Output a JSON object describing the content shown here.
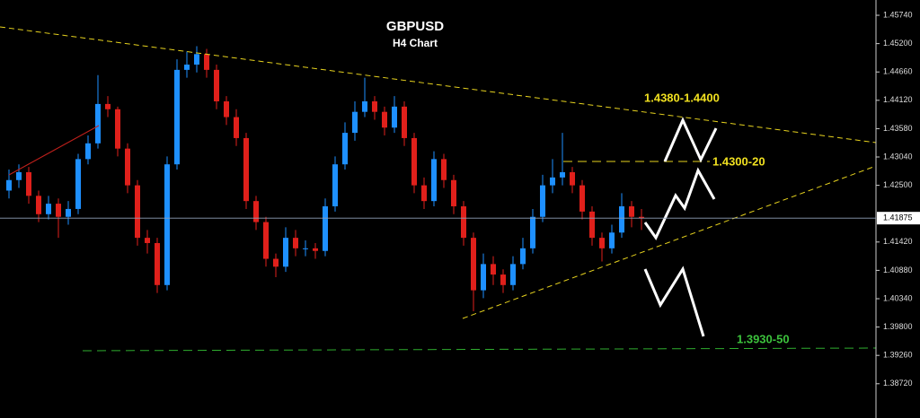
{
  "chart_data": {
    "type": "candlestick",
    "title": "GBPUSD",
    "subtitle": "H4 Chart",
    "annotations": [
      "1.4380-1.4400",
      "1.4300-20",
      "1.3930-50"
    ],
    "up_color": "#1e90ff",
    "down_color": "#e0201b",
    "ylim": [
      1.38067,
      1.46031
    ],
    "yticks": [
      {
        "value": 1.4574,
        "label": "1.45740"
      },
      {
        "value": 1.452,
        "label": "1.45200"
      },
      {
        "value": 1.4466,
        "label": "1.44660"
      },
      {
        "value": 1.4412,
        "label": "1.44120"
      },
      {
        "value": 1.4358,
        "label": "1.43580"
      },
      {
        "value": 1.4304,
        "label": "1.43040"
      },
      {
        "value": 1.425,
        "label": "1.42500"
      },
      {
        "value": 1.4142,
        "label": "1.41420"
      },
      {
        "value": 1.4088,
        "label": "1.40880"
      },
      {
        "value": 1.4034,
        "label": "1.40340"
      },
      {
        "value": 1.398,
        "label": "1.39800"
      },
      {
        "value": 1.3926,
        "label": "1.39260"
      },
      {
        "value": 1.3872,
        "label": "1.38720"
      }
    ],
    "last_price": 1.41875,
    "open": [
      1.424,
      1.426,
      1.4275,
      1.423,
      1.4195,
      1.4215,
      1.419,
      1.4205,
      1.43,
      1.433,
      1.4405,
      1.4395,
      1.432,
      1.425,
      1.415,
      1.414,
      1.406,
      1.429,
      1.447,
      1.448,
      1.45,
      1.447,
      1.441,
      1.438,
      1.434,
      1.422,
      1.418,
      1.411,
      1.4095,
      1.415,
      1.413,
      1.413,
      1.4125,
      1.421,
      1.429,
      1.435,
      1.439,
      1.441,
      1.439,
      1.436,
      1.44,
      1.434,
      1.425,
      1.422,
      1.43,
      1.426,
      1.421,
      1.415,
      1.405,
      1.41,
      1.408,
      1.406,
      1.41,
      1.413,
      1.419,
      1.425,
      1.4265,
      1.4275,
      1.425,
      1.42,
      1.415,
      1.413,
      1.416,
      1.421,
      1.419
    ],
    "high": [
      1.428,
      1.429,
      1.4285,
      1.424,
      1.423,
      1.4225,
      1.422,
      1.431,
      1.4345,
      1.446,
      1.442,
      1.44,
      1.433,
      1.426,
      1.4165,
      1.415,
      1.4305,
      1.449,
      1.4505,
      1.4515,
      1.451,
      1.448,
      1.442,
      1.4395,
      1.435,
      1.423,
      1.419,
      1.412,
      1.417,
      1.4165,
      1.4145,
      1.414,
      1.4225,
      1.4305,
      1.437,
      1.441,
      1.4455,
      1.442,
      1.44,
      1.442,
      1.441,
      1.435,
      1.4265,
      1.4315,
      1.431,
      1.427,
      1.422,
      1.416,
      1.412,
      1.4115,
      1.409,
      1.4115,
      1.415,
      1.4205,
      1.427,
      1.43,
      1.435,
      1.4285,
      1.426,
      1.421,
      1.416,
      1.4175,
      1.4235,
      1.422,
      1.4205
    ],
    "low": [
      1.4225,
      1.4245,
      1.4215,
      1.418,
      1.4185,
      1.415,
      1.4175,
      1.4195,
      1.429,
      1.432,
      1.438,
      1.4305,
      1.4235,
      1.4135,
      1.412,
      1.4045,
      1.405,
      1.428,
      1.4455,
      1.4465,
      1.4455,
      1.4395,
      1.4365,
      1.4325,
      1.4205,
      1.4165,
      1.4095,
      1.4075,
      1.4085,
      1.4115,
      1.4115,
      1.411,
      1.4115,
      1.42,
      1.428,
      1.4335,
      1.438,
      1.4375,
      1.4345,
      1.435,
      1.4325,
      1.4235,
      1.4205,
      1.421,
      1.4245,
      1.4195,
      1.4135,
      1.401,
      1.4035,
      1.406,
      1.4045,
      1.405,
      1.409,
      1.412,
      1.418,
      1.4235,
      1.425,
      1.4235,
      1.4185,
      1.4135,
      1.4105,
      1.412,
      1.415,
      1.417,
      1.4165
    ],
    "close": [
      1.426,
      1.4275,
      1.423,
      1.4195,
      1.4215,
      1.419,
      1.4205,
      1.43,
      1.433,
      1.4405,
      1.4395,
      1.432,
      1.425,
      1.415,
      1.414,
      1.406,
      1.429,
      1.447,
      1.448,
      1.45,
      1.447,
      1.441,
      1.438,
      1.434,
      1.422,
      1.418,
      1.411,
      1.4095,
      1.415,
      1.413,
      1.413,
      1.4125,
      1.421,
      1.429,
      1.435,
      1.439,
      1.441,
      1.439,
      1.436,
      1.44,
      1.434,
      1.425,
      1.422,
      1.43,
      1.426,
      1.421,
      1.415,
      1.405,
      1.41,
      1.408,
      1.406,
      1.41,
      1.413,
      1.419,
      1.425,
      1.4265,
      1.4275,
      1.425,
      1.42,
      1.415,
      1.413,
      1.416,
      1.421,
      1.419,
      1.41875
    ]
  }
}
